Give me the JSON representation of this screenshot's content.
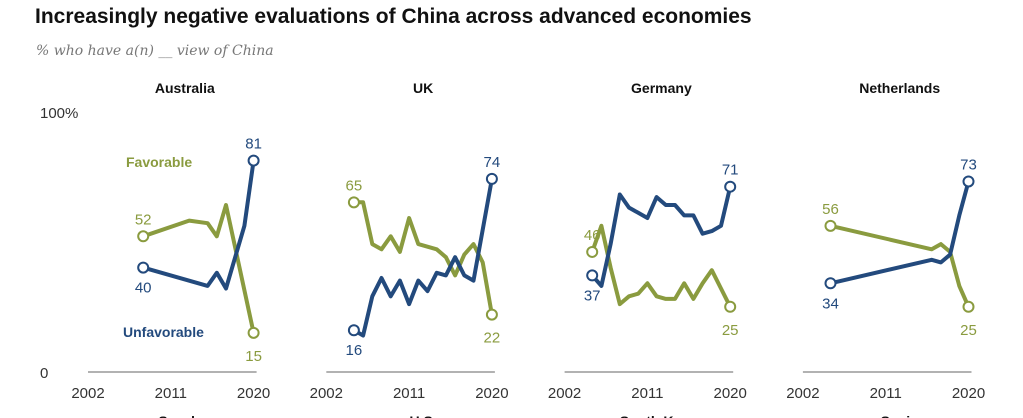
{
  "title": "Increasingly negative evaluations of China across advanced economies",
  "subtitle": "% who have a(n) __ view of China",
  "colors": {
    "favorable": "#8a9b3f",
    "unfavorable": "#234a7d",
    "axis": "#999999"
  },
  "chart_data": {
    "type": "line",
    "ylim": [
      0,
      100
    ],
    "y_tick_labels": [
      "0",
      "100%"
    ],
    "x_tick_labels": [
      "2002",
      "2011",
      "2020"
    ],
    "xlim": [
      2002,
      2020
    ],
    "grid": false,
    "legend": {
      "favorable": "Favorable",
      "unfavorable": "Unfavorable"
    },
    "panels": [
      {
        "title": "Australia",
        "series": [
          {
            "name": "Favorable",
            "x": [
              2008,
              2013,
              2015,
              2016,
              2017,
              2020
            ],
            "y": [
              52,
              58,
              57,
              52,
              64,
              15
            ]
          },
          {
            "name": "Unfavorable",
            "x": [
              2008,
              2015,
              2016,
              2017,
              2019,
              2020
            ],
            "y": [
              40,
              33,
              38,
              32,
              56,
              81
            ]
          }
        ],
        "start_labels": [
          "52",
          "40"
        ],
        "end_labels": [
          "15",
          "81"
        ]
      },
      {
        "title": "UK",
        "series": [
          {
            "name": "Favorable",
            "x": [
              2005,
              2006,
              2007,
              2008,
              2009,
              2010,
              2011,
              2012,
              2013,
              2014,
              2015,
              2016,
              2017,
              2018,
              2019,
              2020
            ],
            "y": [
              65,
              65,
              49,
              47,
              52,
              46,
              59,
              49,
              48,
              47,
              44,
              37,
              45,
              49,
              42,
              22
            ]
          },
          {
            "name": "Unfavorable",
            "x": [
              2005,
              2006,
              2007,
              2008,
              2009,
              2010,
              2011,
              2012,
              2013,
              2014,
              2015,
              2016,
              2017,
              2018,
              2020
            ],
            "y": [
              16,
              14,
              29,
              36,
              29,
              35,
              26,
              35,
              31,
              38,
              37,
              44,
              37,
              35,
              74
            ]
          }
        ],
        "start_labels": [
          "65",
          "16"
        ],
        "end_labels": [
          "22",
          "74"
        ]
      },
      {
        "title": "Germany",
        "series": [
          {
            "name": "Favorable",
            "x": [
              2005,
              2006,
              2007,
              2008,
              2009,
              2010,
              2011,
              2012,
              2013,
              2014,
              2015,
              2016,
              2017,
              2018,
              2019,
              2020
            ],
            "y": [
              46,
              56,
              40,
              26,
              29,
              30,
              34,
              29,
              28,
              28,
              34,
              28,
              34,
              39,
              32,
              25
            ]
          },
          {
            "name": "Unfavorable",
            "x": [
              2005,
              2006,
              2007,
              2008,
              2009,
              2010,
              2011,
              2012,
              2013,
              2014,
              2015,
              2016,
              2017,
              2018,
              2019,
              2020
            ],
            "y": [
              37,
              33,
              49,
              68,
              63,
              61,
              59,
              67,
              64,
              64,
              60,
              60,
              53,
              54,
              56,
              71
            ]
          }
        ],
        "start_labels": [
          "46",
          "37"
        ],
        "end_labels": [
          "25",
          "71"
        ]
      },
      {
        "title": "Netherlands",
        "series": [
          {
            "name": "Favorable",
            "x": [
              2005,
              2016,
              2017,
              2018,
              2019,
              2020
            ],
            "y": [
              56,
              47,
              49,
              46,
              33,
              25
            ]
          },
          {
            "name": "Unfavorable",
            "x": [
              2005,
              2016,
              2017,
              2018,
              2019,
              2020
            ],
            "y": [
              34,
              43,
              42,
              45,
              60,
              73
            ]
          }
        ],
        "start_labels": [
          "56",
          "34"
        ],
        "end_labels": [
          "25",
          "73"
        ]
      }
    ],
    "next_row_titles": [
      "Sweden",
      "U.S.",
      "South Korea",
      "Spain"
    ]
  }
}
